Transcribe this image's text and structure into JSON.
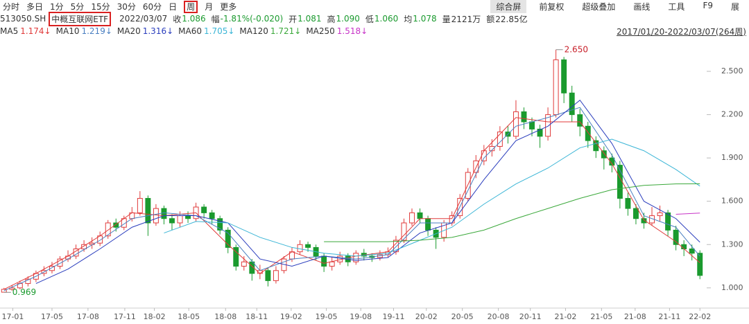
{
  "toolbar": {
    "periods": [
      "分时",
      "多日",
      "1分",
      "5分",
      "15分",
      "30分",
      "60分",
      "日",
      "周",
      "月",
      "更多"
    ],
    "active_period": 8,
    "menu": [
      "综合屏",
      "前复权",
      "超级叠加",
      "画线",
      "工具",
      "F9",
      "展"
    ],
    "active_menu": 0
  },
  "quote": {
    "code": "513050.SH",
    "name": "中概互联网ETF",
    "date": "2022/03/07",
    "items": [
      {
        "label": "收",
        "value": "1.086",
        "color": "#1a9a2e"
      },
      {
        "label": "幅",
        "value": "-1.81%(-0.020)",
        "color": "#1a9a2e"
      },
      {
        "label": "开",
        "value": "1.081",
        "color": "#1a9a2e"
      },
      {
        "label": "高",
        "value": "1.090",
        "color": "#1a9a2e"
      },
      {
        "label": "低",
        "value": "1.060",
        "color": "#1a9a2e"
      },
      {
        "label": "均",
        "value": "1.078",
        "color": "#1a9a2e"
      },
      {
        "label": "量",
        "value": "2121万",
        "color": "#333333"
      },
      {
        "label": "额",
        "value": "22.85亿",
        "color": "#333333"
      }
    ],
    "range": "2017/01/20-2022/03/07(264周)"
  },
  "chart_data": {
    "type": "candlestick",
    "up_color": "#e03a3a",
    "down_color": "#1a9a2e",
    "open": [
      0.97,
      0.99,
      1.0,
      1.03,
      1.06,
      1.1,
      1.12,
      1.15,
      1.2,
      1.22,
      1.27,
      1.3,
      1.31,
      1.36,
      1.45,
      1.42,
      1.48,
      1.52,
      1.62,
      1.45,
      1.55,
      1.48,
      1.45,
      1.5,
      1.48,
      1.56,
      1.52,
      1.48,
      1.4,
      1.28,
      1.15,
      1.18,
      1.1,
      1.12,
      1.05,
      1.12,
      1.2,
      1.25,
      1.3,
      1.28,
      1.22,
      1.15,
      1.18,
      1.22,
      1.18,
      1.24,
      1.22,
      1.21,
      1.23,
      1.25,
      1.33,
      1.45,
      1.52,
      1.48,
      1.4,
      1.35,
      1.45,
      1.5,
      1.62,
      1.8,
      1.88,
      1.95,
      1.98,
      2.08,
      2.05,
      2.22,
      2.15,
      2.1,
      2.05,
      2.2,
      2.58,
      2.35,
      2.2,
      2.12,
      2.02,
      1.95,
      1.9,
      1.85,
      1.62,
      1.55,
      1.48,
      1.45,
      1.5,
      1.52,
      1.4,
      1.3,
      1.27,
      1.24
    ],
    "high": [
      1.0,
      1.02,
      1.05,
      1.08,
      1.12,
      1.15,
      1.18,
      1.22,
      1.26,
      1.3,
      1.33,
      1.35,
      1.39,
      1.47,
      1.48,
      1.5,
      1.56,
      1.67,
      1.64,
      1.58,
      1.57,
      1.51,
      1.53,
      1.53,
      1.59,
      1.58,
      1.54,
      1.5,
      1.42,
      1.3,
      1.22,
      1.2,
      1.16,
      1.14,
      1.15,
      1.22,
      1.28,
      1.33,
      1.32,
      1.3,
      1.24,
      1.21,
      1.25,
      1.24,
      1.26,
      1.27,
      1.24,
      1.26,
      1.28,
      1.36,
      1.48,
      1.55,
      1.55,
      1.5,
      1.42,
      1.47,
      1.53,
      1.65,
      1.83,
      1.92,
      1.99,
      2.03,
      2.12,
      2.12,
      2.3,
      2.25,
      2.18,
      2.13,
      2.25,
      2.65,
      2.6,
      2.4,
      2.24,
      2.15,
      2.05,
      1.98,
      1.93,
      1.88,
      1.66,
      1.58,
      1.52,
      1.56,
      1.57,
      1.54,
      1.43,
      1.33,
      1.3,
      1.26
    ],
    "low": [
      0.969,
      0.98,
      0.99,
      1.01,
      1.04,
      1.08,
      1.1,
      1.13,
      1.18,
      1.2,
      1.25,
      1.27,
      1.29,
      1.34,
      1.39,
      1.4,
      1.46,
      1.5,
      1.36,
      1.43,
      1.44,
      1.4,
      1.42,
      1.45,
      1.46,
      1.48,
      1.44,
      1.37,
      1.24,
      1.12,
      1.12,
      1.05,
      1.06,
      1.01,
      1.03,
      1.1,
      1.18,
      1.23,
      1.25,
      1.19,
      1.11,
      1.12,
      1.16,
      1.15,
      1.16,
      1.19,
      1.18,
      1.19,
      1.21,
      1.23,
      1.31,
      1.43,
      1.45,
      1.36,
      1.27,
      1.32,
      1.43,
      1.48,
      1.6,
      1.76,
      1.85,
      1.91,
      1.95,
      2.0,
      2.03,
      2.1,
      2.05,
      1.97,
      2.02,
      2.18,
      2.28,
      2.15,
      2.05,
      1.97,
      1.9,
      1.82,
      1.8,
      1.55,
      1.5,
      1.44,
      1.41,
      1.43,
      1.46,
      1.36,
      1.26,
      1.22,
      1.19,
      1.06
    ],
    "close": [
      0.99,
      1.0,
      1.03,
      1.06,
      1.1,
      1.12,
      1.15,
      1.2,
      1.22,
      1.27,
      1.3,
      1.31,
      1.36,
      1.45,
      1.42,
      1.48,
      1.52,
      1.62,
      1.45,
      1.55,
      1.48,
      1.45,
      1.5,
      1.48,
      1.56,
      1.52,
      1.48,
      1.4,
      1.28,
      1.15,
      1.18,
      1.1,
      1.12,
      1.05,
      1.12,
      1.2,
      1.25,
      1.3,
      1.28,
      1.22,
      1.15,
      1.18,
      1.22,
      1.18,
      1.24,
      1.22,
      1.21,
      1.23,
      1.25,
      1.33,
      1.45,
      1.52,
      1.48,
      1.4,
      1.35,
      1.45,
      1.5,
      1.62,
      1.8,
      1.88,
      1.95,
      1.98,
      2.08,
      2.05,
      2.22,
      2.15,
      2.1,
      2.05,
      2.2,
      2.58,
      2.35,
      2.2,
      2.12,
      2.02,
      1.95,
      1.9,
      1.85,
      1.62,
      1.55,
      1.48,
      1.45,
      1.5,
      1.52,
      1.4,
      1.3,
      1.27,
      1.24,
      1.086
    ],
    "ma_x": [
      0,
      4,
      8,
      12,
      16,
      20,
      24,
      28,
      32,
      36,
      40,
      44,
      48,
      52,
      56,
      60,
      64,
      68,
      72,
      76,
      80,
      84,
      87
    ],
    "series": [
      {
        "name": "MA5",
        "value_label": "1.174↓",
        "color": "#e03a3a",
        "values": [
          0.99,
          1.1,
          1.22,
          1.36,
          1.52,
          1.5,
          1.52,
          1.3,
          1.1,
          1.25,
          1.17,
          1.22,
          1.25,
          1.48,
          1.48,
          1.95,
          2.18,
          2.15,
          2.15,
          1.86,
          1.47,
          1.32,
          1.174
        ]
      },
      {
        "name": "MA10",
        "value_label": "1.219↓",
        "color": "#4a7fc1",
        "values": [
          0.98,
          1.08,
          1.2,
          1.33,
          1.48,
          1.52,
          1.5,
          1.38,
          1.12,
          1.2,
          1.22,
          1.2,
          1.23,
          1.45,
          1.45,
          1.9,
          2.12,
          2.18,
          2.25,
          1.92,
          1.5,
          1.42,
          1.219
        ]
      },
      {
        "name": "MA20",
        "value_label": "1.316↓",
        "color": "#2a3dbd",
        "values": [
          null,
          1.03,
          1.13,
          1.27,
          1.42,
          1.5,
          1.5,
          1.45,
          1.2,
          1.15,
          1.22,
          1.19,
          1.21,
          1.38,
          1.45,
          1.75,
          2.02,
          2.12,
          2.3,
          2.0,
          1.6,
          1.48,
          1.316
        ]
      },
      {
        "name": "MA60",
        "value_label": "1.705↓",
        "color": "#3ab5d6",
        "values": [
          null,
          null,
          null,
          null,
          null,
          1.38,
          1.46,
          1.45,
          1.35,
          1.28,
          1.24,
          1.22,
          1.24,
          1.33,
          1.42,
          1.58,
          1.72,
          1.83,
          1.97,
          2.03,
          1.95,
          1.82,
          1.705
        ]
      },
      {
        "name": "MA120",
        "value_label": "1.721↓",
        "color": "#3aa83a",
        "values": [
          null,
          null,
          null,
          null,
          null,
          null,
          null,
          null,
          null,
          null,
          1.32,
          1.32,
          1.32,
          1.33,
          1.35,
          1.4,
          1.48,
          1.55,
          1.62,
          1.68,
          1.71,
          1.72,
          1.721
        ]
      },
      {
        "name": "MA250",
        "value_label": "1.518↓",
        "color": "#c733c7",
        "values": [
          null,
          null,
          null,
          null,
          null,
          null,
          null,
          null,
          null,
          null,
          null,
          null,
          null,
          null,
          null,
          null,
          null,
          null,
          null,
          null,
          null,
          1.51,
          1.518
        ]
      }
    ],
    "xlim": [
      0,
      88
    ],
    "ylim": [
      0.86,
      2.716
    ],
    "xticks": [
      {
        "value": 1.6,
        "label": "17-01"
      },
      {
        "value": 6.5,
        "label": "17-05"
      },
      {
        "value": 11,
        "label": "17-08"
      },
      {
        "value": 15.6,
        "label": "17-11"
      },
      {
        "value": 19.3,
        "label": "18-02"
      },
      {
        "value": 23.6,
        "label": "18-05"
      },
      {
        "value": 28.2,
        "label": "18-08"
      },
      {
        "value": 32.1,
        "label": "18-11"
      },
      {
        "value": 36.4,
        "label": "19-02"
      },
      {
        "value": 40.8,
        "label": "19-05"
      },
      {
        "value": 45.1,
        "label": "19-08"
      },
      {
        "value": 49.2,
        "label": "19-11"
      },
      {
        "value": 53.3,
        "label": "20-02"
      },
      {
        "value": 57.8,
        "label": "20-05"
      },
      {
        "value": 62.3,
        "label": "20-08"
      },
      {
        "value": 66.3,
        "label": "20-11"
      },
      {
        "value": 70.7,
        "label": "21-02"
      },
      {
        "value": 75.2,
        "label": "21-05"
      },
      {
        "value": 79.4,
        "label": "21-08"
      },
      {
        "value": 83.7,
        "label": "21-11"
      },
      {
        "value": 87.5,
        "label": "22-02"
      }
    ],
    "yticks": [
      {
        "value": 1.0,
        "label": "1.000"
      },
      {
        "value": 1.3,
        "label": "1.300"
      },
      {
        "value": 1.6,
        "label": "1.600"
      },
      {
        "value": 1.9,
        "label": "1.900"
      },
      {
        "value": 2.2,
        "label": "2.200"
      },
      {
        "value": 2.5,
        "label": "2.500"
      }
    ],
    "grid": false,
    "annotations": [
      {
        "text": "2.650",
        "x": 69,
        "value": 2.65,
        "color": "#c8202a"
      },
      {
        "text": "0.969",
        "x": 0,
        "value": 0.969,
        "color": "#1a9a2e"
      }
    ]
  }
}
